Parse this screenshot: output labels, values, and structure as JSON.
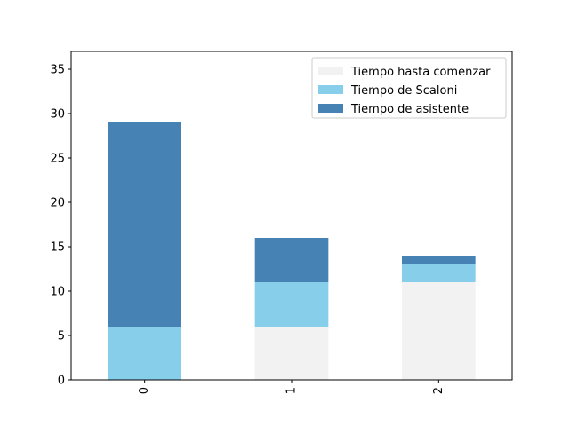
{
  "chart_data": {
    "type": "bar",
    "stacked": true,
    "categories": [
      "0",
      "1",
      "2"
    ],
    "series": [
      {
        "name": "Tiempo hasta comenzar",
        "values": [
          0,
          6,
          11
        ],
        "color": "#f2f2f2"
      },
      {
        "name": "Tiempo de Scaloni",
        "values": [
          6,
          5,
          2
        ],
        "color": "#87ceeb"
      },
      {
        "name": "Tiempo de asistente",
        "values": [
          23,
          5,
          1
        ],
        "color": "#4682b4"
      }
    ],
    "title": "",
    "xlabel": "",
    "ylabel": "",
    "ylim": [
      0,
      37
    ],
    "yticks": [
      0,
      5,
      10,
      15,
      20,
      25,
      30,
      35
    ],
    "xtick_rotation": 90,
    "grid": false,
    "legend_position": "top-right"
  }
}
